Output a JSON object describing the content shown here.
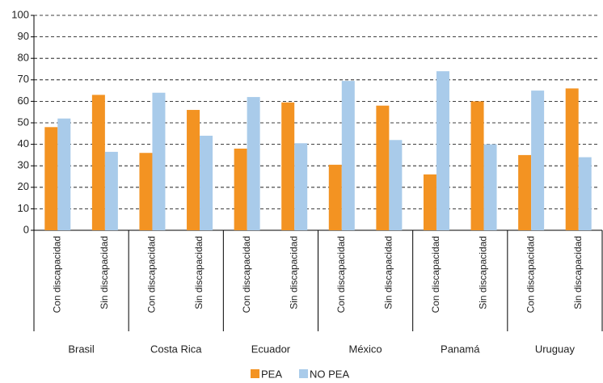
{
  "chart_data": {
    "type": "bar",
    "categories": [
      "Con discapacidad",
      "Sin discapacidad",
      "Con discapacidad",
      "Sin discapacidad",
      "Con discapacidad",
      "Sin discapacidad",
      "Con discapacidad",
      "Sin discapacidad",
      "Con discapacidad",
      "Sin discapacidad",
      "Con discapacidad",
      "Sin discapacidad"
    ],
    "groups": [
      "Brasil",
      "Costa Rica",
      "Ecuador",
      "México",
      "Panamá",
      "Uruguay"
    ],
    "series": [
      {
        "name": "PEA",
        "color": "#f39322",
        "values": [
          48,
          63,
          36,
          56,
          38,
          59.5,
          30.5,
          58,
          26,
          60,
          35,
          66
        ]
      },
      {
        "name": "NO PEA",
        "color": "#a9cbea",
        "values": [
          52,
          36.5,
          64,
          44,
          62,
          40.5,
          69.5,
          42,
          74,
          40,
          65,
          34
        ]
      }
    ],
    "ylim": [
      0,
      100
    ],
    "yticks": [
      0,
      10,
      20,
      30,
      40,
      50,
      60,
      70,
      80,
      90,
      100
    ],
    "grid": true,
    "legend": "bottom"
  }
}
